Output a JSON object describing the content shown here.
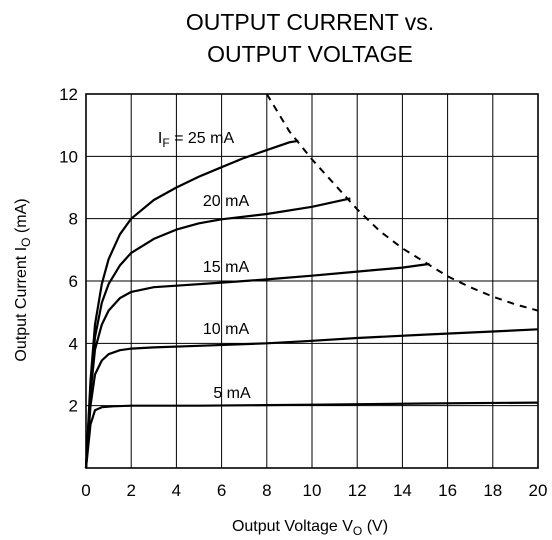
{
  "chart_data": {
    "type": "line",
    "title_lines": [
      "OUTPUT CURRENT vs.",
      "OUTPUT VOLTAGE"
    ],
    "xlabel": {
      "prefix": "Output Voltage V",
      "sub": "O",
      "suffix": " (V)"
    },
    "ylabel": {
      "prefix": "Output Current I",
      "sub": "O",
      "suffix": " (mA)"
    },
    "xlim": [
      0,
      20
    ],
    "ylim": [
      0,
      12
    ],
    "xticks": [
      "0",
      "2",
      "4",
      "6",
      "8",
      "10",
      "12",
      "14",
      "16",
      "18",
      "20"
    ],
    "yticks": [
      "2",
      "4",
      "6",
      "8",
      "10",
      "12"
    ],
    "grid": true,
    "series": [
      {
        "name": "5 mA",
        "label": {
          "prefix": "5 mA"
        },
        "points": [
          [
            0,
            0
          ],
          [
            0.2,
            1.4
          ],
          [
            0.4,
            1.85
          ],
          [
            0.7,
            1.95
          ],
          [
            1.2,
            1.98
          ],
          [
            2,
            2.0
          ],
          [
            5,
            2.0
          ],
          [
            10,
            2.03
          ],
          [
            15,
            2.07
          ],
          [
            20,
            2.1
          ]
        ]
      },
      {
        "name": "10 mA",
        "label": {
          "prefix": "10 mA"
        },
        "points": [
          [
            0,
            0
          ],
          [
            0.2,
            2.0
          ],
          [
            0.4,
            3.0
          ],
          [
            0.7,
            3.45
          ],
          [
            1,
            3.65
          ],
          [
            1.5,
            3.78
          ],
          [
            2,
            3.83
          ],
          [
            3,
            3.87
          ],
          [
            5,
            3.92
          ],
          [
            8,
            4.0
          ],
          [
            10,
            4.08
          ],
          [
            12,
            4.17
          ],
          [
            15,
            4.28
          ],
          [
            18,
            4.38
          ],
          [
            20,
            4.45
          ]
        ]
      },
      {
        "name": "15 mA",
        "label": {
          "prefix": "15 mA"
        },
        "points": [
          [
            0,
            0
          ],
          [
            0.2,
            2.4
          ],
          [
            0.4,
            3.8
          ],
          [
            0.7,
            4.6
          ],
          [
            1,
            5.05
          ],
          [
            1.5,
            5.45
          ],
          [
            2,
            5.65
          ],
          [
            3,
            5.8
          ],
          [
            4,
            5.85
          ],
          [
            6,
            5.95
          ],
          [
            8,
            6.05
          ],
          [
            10,
            6.17
          ],
          [
            12,
            6.3
          ],
          [
            14,
            6.43
          ],
          [
            15.2,
            6.55
          ]
        ]
      },
      {
        "name": "20 mA",
        "label": {
          "prefix": "20 mA"
        },
        "points": [
          [
            0,
            0
          ],
          [
            0.2,
            2.6
          ],
          [
            0.4,
            4.2
          ],
          [
            0.7,
            5.3
          ],
          [
            1,
            5.9
          ],
          [
            1.5,
            6.5
          ],
          [
            2,
            6.9
          ],
          [
            3,
            7.35
          ],
          [
            4,
            7.65
          ],
          [
            5,
            7.85
          ],
          [
            6,
            7.98
          ],
          [
            8,
            8.15
          ],
          [
            10,
            8.38
          ],
          [
            11.7,
            8.65
          ]
        ]
      },
      {
        "name": "I_F = 25 mA",
        "label": {
          "prefix": "I",
          "sub": "F",
          "suffix": " = 25 mA"
        },
        "points": [
          [
            0,
            0
          ],
          [
            0.2,
            2.8
          ],
          [
            0.4,
            4.6
          ],
          [
            0.7,
            5.9
          ],
          [
            1,
            6.7
          ],
          [
            1.5,
            7.5
          ],
          [
            2,
            8.0
          ],
          [
            3,
            8.6
          ],
          [
            4,
            9.0
          ],
          [
            5,
            9.35
          ],
          [
            6,
            9.65
          ],
          [
            7,
            9.95
          ],
          [
            8,
            10.2
          ],
          [
            9,
            10.45
          ],
          [
            9.4,
            10.5
          ]
        ]
      }
    ],
    "limit_curve": {
      "style": "dashed",
      "points": [
        [
          8,
          12
        ],
        [
          9,
          10.8
        ],
        [
          10,
          9.9
        ],
        [
          11.5,
          8.7
        ],
        [
          12,
          8.3
        ],
        [
          13,
          7.6
        ],
        [
          14,
          7.05
        ],
        [
          15,
          6.6
        ],
        [
          16,
          6.15
        ],
        [
          17,
          5.8
        ],
        [
          18,
          5.5
        ],
        [
          19,
          5.25
        ],
        [
          20,
          5.05
        ]
      ]
    }
  }
}
